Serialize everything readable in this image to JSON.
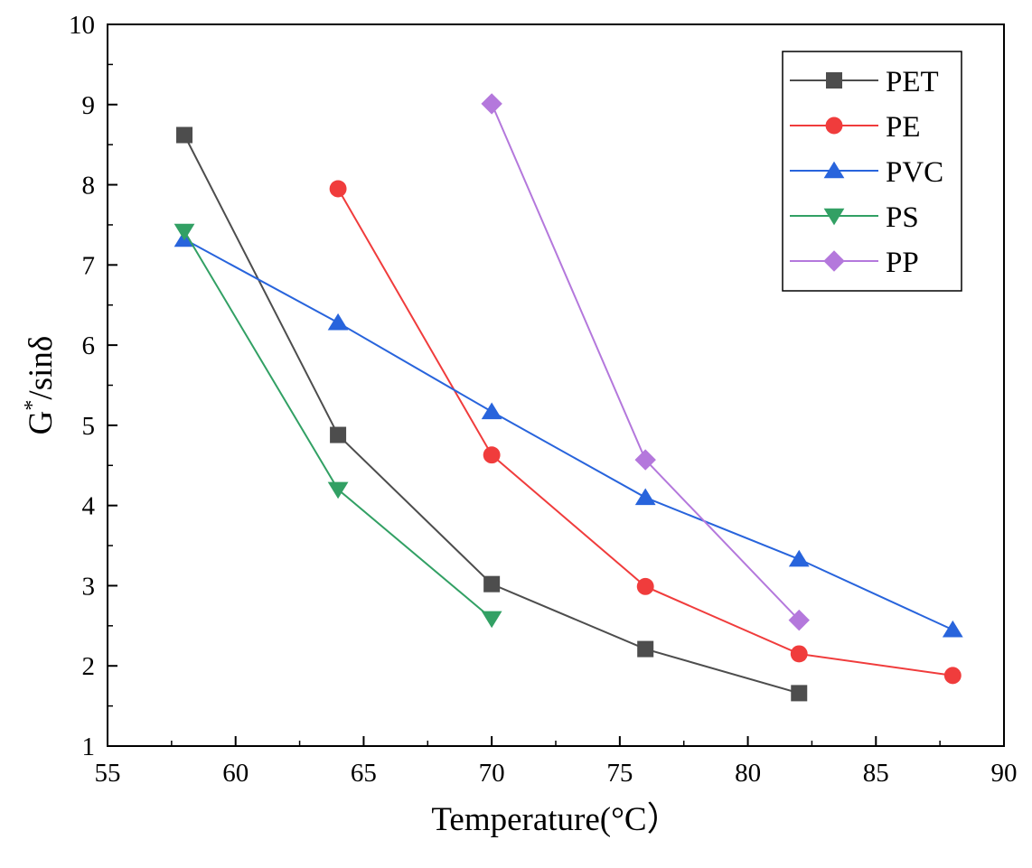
{
  "chart_data": {
    "type": "line",
    "title": "",
    "xlabel": "Temperature(°C）",
    "ylabel_main": "G",
    "ylabel_sup": "*",
    "ylabel_tail": "/sinδ",
    "xlim": [
      55,
      90
    ],
    "ylim": [
      1,
      10
    ],
    "xticks": [
      55,
      60,
      65,
      70,
      75,
      80,
      85,
      90
    ],
    "yticks": [
      1,
      2,
      3,
      4,
      5,
      6,
      7,
      8,
      9,
      10
    ],
    "grid": false,
    "legend_position": "top-right",
    "series": [
      {
        "name": "PET",
        "color": "#4d4d4d",
        "marker": "square",
        "x": [
          58,
          64,
          70,
          76,
          82
        ],
        "y": [
          8.62,
          4.88,
          3.02,
          2.21,
          1.66
        ]
      },
      {
        "name": "PE",
        "color": "#f03c3c",
        "marker": "circle",
        "x": [
          64,
          70,
          76,
          82,
          88
        ],
        "y": [
          7.95,
          4.63,
          2.99,
          2.15,
          1.88
        ]
      },
      {
        "name": "PVC",
        "color": "#2864dc",
        "marker": "triangle-up",
        "x": [
          58,
          64,
          70,
          76,
          82,
          88
        ],
        "y": [
          7.32,
          6.28,
          5.17,
          4.1,
          3.33,
          2.45
        ]
      },
      {
        "name": "PS",
        "color": "#32a064",
        "marker": "triangle-down",
        "x": [
          58,
          64,
          70
        ],
        "y": [
          7.42,
          4.2,
          2.59
        ]
      },
      {
        "name": "PP",
        "color": "#b478dc",
        "marker": "diamond",
        "x": [
          70,
          76,
          82
        ],
        "y": [
          9.01,
          4.57,
          2.57
        ]
      }
    ]
  }
}
